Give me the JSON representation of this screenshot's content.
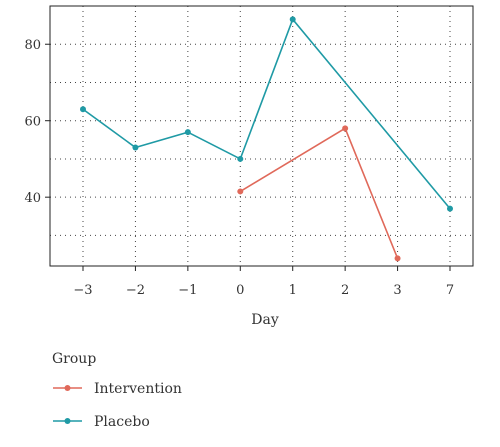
{
  "chart_data": {
    "type": "line",
    "title": "",
    "xlabel": "Day",
    "ylabel": "",
    "categories": [
      "-3",
      "-2",
      "-1",
      "0",
      "1",
      "2",
      "3",
      "7"
    ],
    "category_labels": [
      "−3",
      "−2",
      "−1",
      "0",
      "1",
      "2",
      "3",
      "7"
    ],
    "yticks": [
      40,
      60,
      80
    ],
    "ylim": [
      22,
      90
    ],
    "grid": true,
    "legend": {
      "title": "Group",
      "placement": "bottom"
    },
    "series": [
      {
        "name": "Intervention",
        "color": "#e0695a",
        "x": [
          "0",
          "2",
          "3"
        ],
        "values": [
          41.5,
          58,
          24
        ]
      },
      {
        "name": "Placebo",
        "color": "#1f9aa5",
        "x": [
          "-3",
          "-2",
          "-1",
          "0",
          "1",
          "7"
        ],
        "values": [
          63,
          53,
          57,
          50,
          86.5,
          37
        ]
      }
    ]
  }
}
